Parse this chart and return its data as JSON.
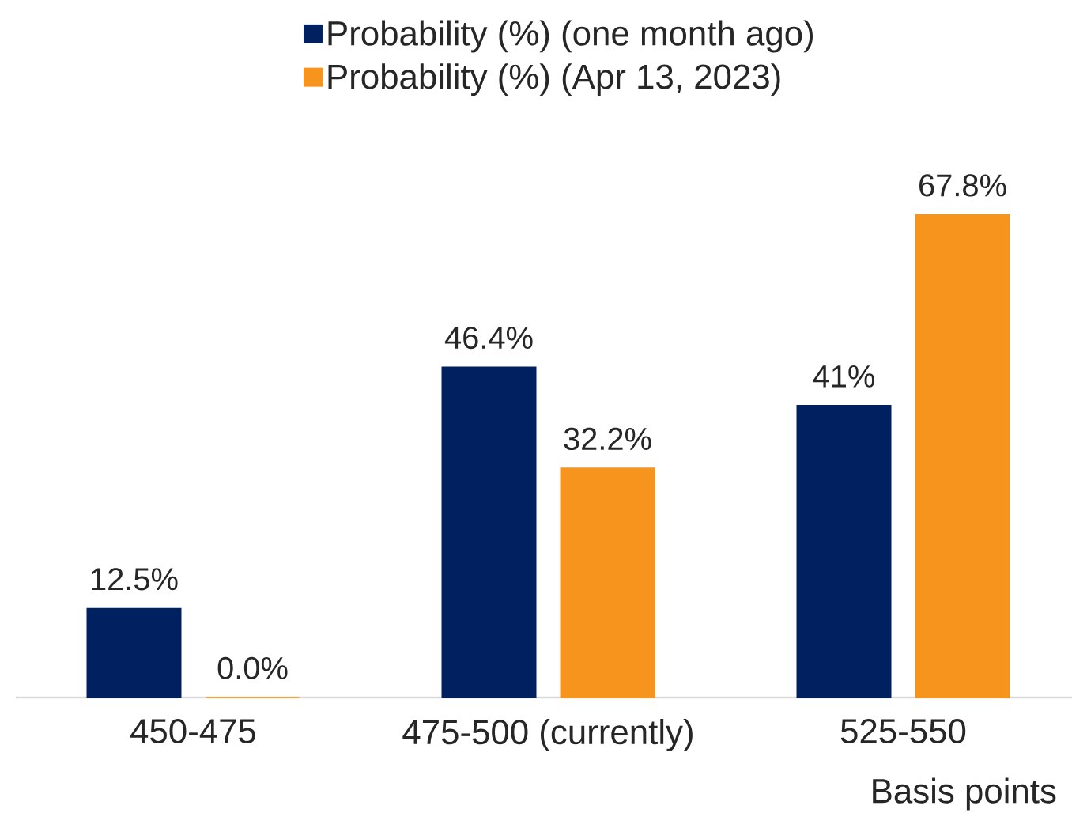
{
  "chart_data": {
    "type": "bar",
    "xlabel": "Basis points",
    "categories": [
      "450-475",
      "475-500 (currently)",
      "525-550"
    ],
    "series": [
      {
        "name": "Probability (%) (one month ago)",
        "color": "#002060",
        "values": [
          12.5,
          46.4,
          41
        ],
        "value_labels": [
          "12.5%",
          "46.4%",
          "41%"
        ]
      },
      {
        "name": "Probability (%) (Apr 13, 2023)",
        "color": "#f7941d",
        "values": [
          0.0,
          32.2,
          67.8
        ],
        "value_labels": [
          "0.0%",
          "32.2%",
          "67.8%"
        ]
      }
    ],
    "legend": "top",
    "tick_labels": "x"
  }
}
